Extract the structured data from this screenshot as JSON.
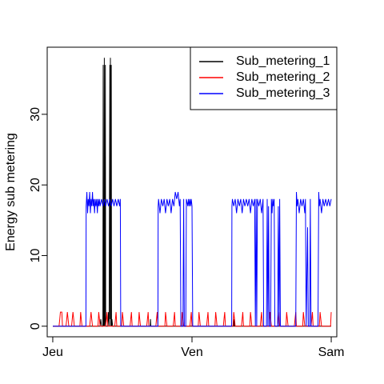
{
  "chart_data": {
    "type": "line",
    "title": "",
    "xlabel": "",
    "ylabel": "Energy sub metering",
    "x_ticks": [
      {
        "value": 0,
        "label": "Jeu"
      },
      {
        "value": 1,
        "label": "Ven"
      },
      {
        "value": 2,
        "label": "Sam"
      }
    ],
    "xlim": [
      -0.04,
      2.04
    ],
    "y_ticks": [
      0,
      10,
      20,
      30
    ],
    "ylim": [
      -1.5,
      39.5
    ],
    "grid": false,
    "legend_position": "top-right",
    "series": [
      {
        "name": "Sub_metering_1",
        "color": "#000000",
        "points": [
          [
            0.0,
            0
          ],
          [
            0.34,
            0
          ],
          [
            0.345,
            1
          ],
          [
            0.35,
            0
          ],
          [
            0.36,
            0
          ],
          [
            0.362,
            37
          ],
          [
            0.364,
            0
          ],
          [
            0.366,
            2
          ],
          [
            0.368,
            0
          ],
          [
            0.37,
            38
          ],
          [
            0.372,
            0
          ],
          [
            0.375,
            1
          ],
          [
            0.378,
            37
          ],
          [
            0.38,
            0
          ],
          [
            0.395,
            0
          ],
          [
            0.4,
            2
          ],
          [
            0.405,
            0
          ],
          [
            0.41,
            37
          ],
          [
            0.412,
            1
          ],
          [
            0.414,
            38
          ],
          [
            0.416,
            0
          ],
          [
            0.42,
            37
          ],
          [
            0.422,
            0
          ],
          [
            0.425,
            1
          ],
          [
            0.43,
            0
          ],
          [
            0.7,
            0
          ],
          [
            0.702,
            1
          ],
          [
            0.704,
            0
          ],
          [
            1.3,
            0
          ],
          [
            1.302,
            1
          ],
          [
            1.304,
            0
          ],
          [
            2.0,
            0
          ]
        ]
      },
      {
        "name": "Sub_metering_2",
        "color": "#ff0000",
        "points": [
          [
            0.0,
            0
          ],
          [
            0.045,
            0
          ],
          [
            0.05,
            1
          ],
          [
            0.055,
            2
          ],
          [
            0.065,
            2
          ],
          [
            0.07,
            0
          ],
          [
            0.095,
            0
          ],
          [
            0.1,
            1
          ],
          [
            0.105,
            2
          ],
          [
            0.11,
            1
          ],
          [
            0.115,
            0
          ],
          [
            0.135,
            0
          ],
          [
            0.14,
            1
          ],
          [
            0.145,
            2
          ],
          [
            0.15,
            1
          ],
          [
            0.155,
            0
          ],
          [
            0.195,
            0
          ],
          [
            0.2,
            2
          ],
          [
            0.205,
            1
          ],
          [
            0.21,
            0
          ],
          [
            0.265,
            0
          ],
          [
            0.27,
            1
          ],
          [
            0.275,
            2
          ],
          [
            0.28,
            1
          ],
          [
            0.285,
            0
          ],
          [
            0.325,
            0
          ],
          [
            0.33,
            2
          ],
          [
            0.335,
            1
          ],
          [
            0.34,
            0
          ],
          [
            0.38,
            0
          ],
          [
            0.385,
            1
          ],
          [
            0.39,
            2
          ],
          [
            0.395,
            0
          ],
          [
            0.445,
            0
          ],
          [
            0.45,
            1
          ],
          [
            0.455,
            2
          ],
          [
            0.46,
            0
          ],
          [
            0.495,
            0
          ],
          [
            0.5,
            2
          ],
          [
            0.505,
            1
          ],
          [
            0.51,
            0
          ],
          [
            0.555,
            0
          ],
          [
            0.56,
            1
          ],
          [
            0.565,
            2
          ],
          [
            0.57,
            0
          ],
          [
            0.615,
            0
          ],
          [
            0.62,
            2
          ],
          [
            0.625,
            1
          ],
          [
            0.63,
            0
          ],
          [
            0.675,
            0
          ],
          [
            0.68,
            1
          ],
          [
            0.685,
            2
          ],
          [
            0.69,
            0
          ],
          [
            0.74,
            0
          ],
          [
            0.745,
            1
          ],
          [
            0.75,
            2
          ],
          [
            0.755,
            0
          ],
          [
            0.805,
            0
          ],
          [
            0.81,
            2
          ],
          [
            0.815,
            1
          ],
          [
            0.82,
            0
          ],
          [
            0.865,
            0
          ],
          [
            0.87,
            1
          ],
          [
            0.875,
            2
          ],
          [
            0.88,
            0
          ],
          [
            0.925,
            0
          ],
          [
            0.93,
            2
          ],
          [
            0.935,
            1
          ],
          [
            0.94,
            0
          ],
          [
            0.985,
            0
          ],
          [
            0.99,
            1
          ],
          [
            0.995,
            2
          ],
          [
            1.0,
            0
          ],
          [
            1.045,
            0
          ],
          [
            1.05,
            2
          ],
          [
            1.055,
            1
          ],
          [
            1.06,
            0
          ],
          [
            1.105,
            0
          ],
          [
            1.11,
            1
          ],
          [
            1.115,
            2
          ],
          [
            1.12,
            0
          ],
          [
            1.165,
            0
          ],
          [
            1.17,
            2
          ],
          [
            1.175,
            1
          ],
          [
            1.18,
            0
          ],
          [
            1.225,
            0
          ],
          [
            1.23,
            1
          ],
          [
            1.235,
            2
          ],
          [
            1.24,
            0
          ],
          [
            1.295,
            0
          ],
          [
            1.3,
            2
          ],
          [
            1.305,
            1
          ],
          [
            1.31,
            0
          ],
          [
            1.355,
            0
          ],
          [
            1.36,
            1
          ],
          [
            1.365,
            2
          ],
          [
            1.37,
            0
          ],
          [
            1.415,
            0
          ],
          [
            1.42,
            2
          ],
          [
            1.425,
            1
          ],
          [
            1.43,
            0
          ],
          [
            1.49,
            0
          ],
          [
            1.495,
            1
          ],
          [
            1.5,
            2
          ],
          [
            1.505,
            0
          ],
          [
            1.555,
            0
          ],
          [
            1.56,
            2
          ],
          [
            1.565,
            1
          ],
          [
            1.57,
            0
          ],
          [
            1.615,
            0
          ],
          [
            1.62,
            1
          ],
          [
            1.625,
            2
          ],
          [
            1.63,
            0
          ],
          [
            1.675,
            0
          ],
          [
            1.68,
            2
          ],
          [
            1.685,
            1
          ],
          [
            1.69,
            0
          ],
          [
            1.735,
            0
          ],
          [
            1.74,
            1
          ],
          [
            1.745,
            2
          ],
          [
            1.75,
            0
          ],
          [
            1.795,
            0
          ],
          [
            1.8,
            2
          ],
          [
            1.805,
            1
          ],
          [
            1.81,
            0
          ],
          [
            1.855,
            0
          ],
          [
            1.86,
            1
          ],
          [
            1.865,
            2
          ],
          [
            1.87,
            0
          ],
          [
            1.915,
            0
          ],
          [
            1.92,
            2
          ],
          [
            1.925,
            1
          ],
          [
            1.93,
            0
          ],
          [
            1.995,
            0
          ],
          [
            2.0,
            2
          ]
        ]
      },
      {
        "name": "Sub_metering_3",
        "color": "#0000ff",
        "points": [
          [
            0.0,
            0
          ],
          [
            0.238,
            0
          ],
          [
            0.24,
            17
          ],
          [
            0.245,
            19
          ],
          [
            0.25,
            16
          ],
          [
            0.255,
            18
          ],
          [
            0.26,
            17
          ],
          [
            0.265,
            19
          ],
          [
            0.27,
            16
          ],
          [
            0.275,
            18
          ],
          [
            0.28,
            17
          ],
          [
            0.285,
            19
          ],
          [
            0.29,
            17
          ],
          [
            0.295,
            18
          ],
          [
            0.3,
            16
          ],
          [
            0.305,
            18
          ],
          [
            0.31,
            17
          ],
          [
            0.315,
            18
          ],
          [
            0.32,
            16
          ],
          [
            0.325,
            18
          ],
          [
            0.33,
            17
          ],
          [
            0.335,
            18
          ],
          [
            0.34,
            17
          ],
          [
            0.35,
            18
          ],
          [
            0.36,
            17
          ],
          [
            0.37,
            18
          ],
          [
            0.38,
            17
          ],
          [
            0.39,
            18
          ],
          [
            0.4,
            17
          ],
          [
            0.41,
            18
          ],
          [
            0.42,
            17
          ],
          [
            0.43,
            18
          ],
          [
            0.44,
            17
          ],
          [
            0.45,
            18
          ],
          [
            0.46,
            17
          ],
          [
            0.47,
            18
          ],
          [
            0.48,
            17
          ],
          [
            0.485,
            18
          ],
          [
            0.488,
            0
          ],
          [
            0.755,
            0
          ],
          [
            0.757,
            17
          ],
          [
            0.76,
            18
          ],
          [
            0.77,
            16
          ],
          [
            0.78,
            18
          ],
          [
            0.79,
            17
          ],
          [
            0.8,
            18
          ],
          [
            0.81,
            16
          ],
          [
            0.82,
            18
          ],
          [
            0.83,
            17
          ],
          [
            0.84,
            18
          ],
          [
            0.85,
            16
          ],
          [
            0.86,
            18
          ],
          [
            0.87,
            17
          ],
          [
            0.88,
            19
          ],
          [
            0.89,
            18
          ],
          [
            0.9,
            19
          ],
          [
            0.91,
            17
          ],
          [
            0.915,
            18
          ],
          [
            0.92,
            0
          ],
          [
            0.935,
            0
          ],
          [
            0.94,
            18
          ],
          [
            0.945,
            0
          ],
          [
            0.955,
            0
          ],
          [
            0.96,
            18
          ],
          [
            0.97,
            17
          ],
          [
            0.975,
            18
          ],
          [
            0.98,
            17
          ],
          [
            0.985,
            18
          ],
          [
            0.99,
            17
          ],
          [
            0.995,
            18
          ],
          [
            1.0,
            17
          ],
          [
            1.005,
            0
          ],
          [
            1.285,
            0
          ],
          [
            1.287,
            17
          ],
          [
            1.29,
            18
          ],
          [
            1.3,
            17
          ],
          [
            1.31,
            18
          ],
          [
            1.32,
            16
          ],
          [
            1.33,
            18
          ],
          [
            1.34,
            17
          ],
          [
            1.35,
            18
          ],
          [
            1.36,
            16
          ],
          [
            1.37,
            18
          ],
          [
            1.38,
            17
          ],
          [
            1.39,
            18
          ],
          [
            1.4,
            17
          ],
          [
            1.41,
            18
          ],
          [
            1.42,
            16
          ],
          [
            1.43,
            18
          ],
          [
            1.44,
            17
          ],
          [
            1.45,
            18
          ],
          [
            1.455,
            0
          ],
          [
            1.46,
            18
          ],
          [
            1.465,
            0
          ],
          [
            1.47,
            18
          ],
          [
            1.48,
            17
          ],
          [
            1.49,
            18
          ],
          [
            1.5,
            16
          ],
          [
            1.51,
            18
          ],
          [
            1.515,
            0
          ],
          [
            1.535,
            0
          ],
          [
            1.54,
            18
          ],
          [
            1.545,
            0
          ],
          [
            1.55,
            17
          ],
          [
            1.555,
            0
          ],
          [
            1.565,
            0
          ],
          [
            1.57,
            18
          ],
          [
            1.575,
            16
          ],
          [
            1.58,
            18
          ],
          [
            1.585,
            17
          ],
          [
            1.59,
            18
          ],
          [
            1.595,
            0
          ],
          [
            1.615,
            0
          ],
          [
            1.62,
            17
          ],
          [
            1.625,
            0
          ],
          [
            1.63,
            18
          ],
          [
            1.635,
            0
          ],
          [
            1.745,
            0
          ],
          [
            1.75,
            19
          ],
          [
            1.755,
            17
          ],
          [
            1.76,
            18
          ],
          [
            1.77,
            16
          ],
          [
            1.78,
            18
          ],
          [
            1.79,
            17
          ],
          [
            1.8,
            18
          ],
          [
            1.81,
            16
          ],
          [
            1.815,
            18
          ],
          [
            1.82,
            0
          ],
          [
            1.83,
            14
          ],
          [
            1.835,
            0
          ],
          [
            1.845,
            0
          ],
          [
            1.85,
            18
          ],
          [
            1.855,
            0
          ],
          [
            1.905,
            0
          ],
          [
            1.91,
            19
          ],
          [
            1.915,
            17
          ],
          [
            1.92,
            18
          ],
          [
            1.93,
            16
          ],
          [
            1.94,
            18
          ],
          [
            1.95,
            17
          ],
          [
            1.96,
            18
          ],
          [
            1.97,
            17
          ],
          [
            1.98,
            18
          ],
          [
            1.99,
            17
          ],
          [
            2.0,
            18
          ]
        ]
      }
    ]
  }
}
